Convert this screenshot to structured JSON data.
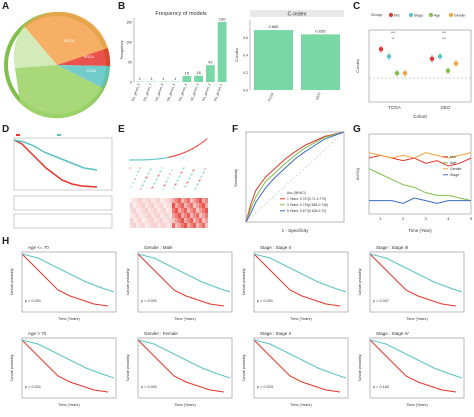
{
  "panels": {
    "A": {
      "label": "A",
      "sectors": [
        "SKCM",
        "BRCA",
        "COAD"
      ]
    },
    "B": {
      "label": "B"
    },
    "C": {
      "label": "C"
    },
    "D": {
      "label": "D"
    },
    "E": {
      "label": "E"
    },
    "F": {
      "label": "F"
    },
    "G": {
      "label": "G"
    },
    "H": {
      "label": "H"
    }
  },
  "chart_data": [
    {
      "id": "B-left",
      "type": "bar",
      "title": "Frequency of models",
      "ylabel": "Frequency",
      "categories": [
        "SG_genes_8",
        "SG_genes_7",
        "SG_genes_6",
        "SG_genes_5",
        "SG_genes_4",
        "SG_genes_3",
        "SG_genes_2",
        "SG_genes_1"
      ],
      "values": [
        1,
        1,
        1,
        1,
        15,
        16,
        42,
        150
      ],
      "value_labels": [
        "1",
        "1",
        "1",
        "1",
        "15",
        "16",
        "42",
        "150"
      ],
      "color": "#79d7a6"
    },
    {
      "id": "B-right",
      "type": "bar",
      "title": "C-index",
      "ylabel": "C-index",
      "categories": [
        "TCGA",
        "GEO"
      ],
      "values": [
        0.685,
        0.636
      ],
      "value_labels": [
        "0.685",
        "0.636"
      ],
      "color": "#79d7a6"
    },
    {
      "id": "C",
      "type": "scatter",
      "ylabel": "C-index",
      "xlabel": "Cohort",
      "categories": [
        "TCGA",
        "GEO"
      ],
      "legend_title": "Group",
      "series": [
        {
          "name": "Mrs",
          "color": "#e5352b"
        },
        {
          "name": "Stage",
          "color": "#59c3c3"
        },
        {
          "name": "Age",
          "color": "#7fbf4a"
        },
        {
          "name": "Gender",
          "color": "#f2a33a"
        }
      ],
      "values": [
        [
          0.62,
          0.59,
          0.52,
          0.52
        ],
        [
          0.58,
          0.59,
          0.53,
          0.56
        ]
      ],
      "sig": [
        "***",
        "**",
        "***",
        "***"
      ]
    },
    {
      "id": "F",
      "type": "line",
      "xlabel": "1 - Specificity",
      "ylabel": "Sensitivity",
      "legend": [
        "Auc (95%CI)",
        "1 Years: 0.747(0.71-0.779)",
        "3 Years: 0.719(0.684-0.748)",
        "5 Years: 0.677(0.634-0.72)"
      ],
      "series": [
        {
          "name": "1 Years",
          "color": "#e5352b",
          "x": [
            0,
            0.05,
            0.1,
            0.2,
            0.3,
            0.4,
            0.5,
            0.6,
            0.7,
            0.8,
            1
          ],
          "y": [
            0,
            0.2,
            0.35,
            0.5,
            0.6,
            0.7,
            0.78,
            0.85,
            0.9,
            0.95,
            1
          ]
        },
        {
          "name": "3 Years",
          "color": "#7fbf4a",
          "x": [
            0,
            0.05,
            0.1,
            0.2,
            0.3,
            0.4,
            0.5,
            0.6,
            0.7,
            0.8,
            1
          ],
          "y": [
            0,
            0.15,
            0.28,
            0.45,
            0.55,
            0.65,
            0.74,
            0.82,
            0.88,
            0.94,
            1
          ]
        },
        {
          "name": "5 Years",
          "color": "#3b6cc9",
          "x": [
            0,
            0.05,
            0.1,
            0.2,
            0.3,
            0.4,
            0.5,
            0.6,
            0.7,
            0.8,
            1
          ],
          "y": [
            0,
            0.1,
            0.22,
            0.38,
            0.5,
            0.6,
            0.7,
            0.78,
            0.85,
            0.92,
            1
          ]
        }
      ]
    },
    {
      "id": "G",
      "type": "line",
      "xlabel": "Time (Year)",
      "ylabel": "AUC(t)",
      "legend": [
        "Mrs",
        "Age",
        "Gender",
        "Stage"
      ],
      "x": [
        0.5,
        1,
        1.5,
        2,
        2.5,
        3,
        3.5,
        4,
        4.5,
        5
      ],
      "xticks": [
        "1",
        "2",
        "3",
        "4",
        "5"
      ],
      "series": [
        {
          "name": "Mrs",
          "color": "#e5352b",
          "y": [
            0.66,
            0.67,
            0.66,
            0.65,
            0.66,
            0.64,
            0.65,
            0.63,
            0.64,
            0.66
          ]
        },
        {
          "name": "Age",
          "color": "#7fbf4a",
          "y": [
            0.62,
            0.6,
            0.58,
            0.56,
            0.55,
            0.53,
            0.52,
            0.52,
            0.51,
            0.5
          ]
        },
        {
          "name": "Gender",
          "color": "#f2a33a",
          "y": [
            0.68,
            0.67,
            0.66,
            0.67,
            0.66,
            0.68,
            0.67,
            0.66,
            0.67,
            0.68
          ]
        },
        {
          "name": "Stage",
          "color": "#3b6cc9",
          "y": [
            0.5,
            0.5,
            0.5,
            0.49,
            0.51,
            0.5,
            0.49,
            0.5,
            0.5,
            0.5
          ]
        }
      ]
    },
    {
      "id": "H",
      "type": "line",
      "panels": [
        {
          "title": "Age <= 70",
          "p": "p < 0.001"
        },
        {
          "title": "Gender : Male",
          "p": "p < 0.001"
        },
        {
          "title": "Stage : Stage II",
          "p": "p < 0.001"
        },
        {
          "title": "Stage : Stage III",
          "p": "p = 0.007"
        },
        {
          "title": "Age > 70",
          "p": "p = 0.001"
        },
        {
          "title": "Gender : Female",
          "p": "p < 0.001"
        },
        {
          "title": "Stage : Stage II",
          "p": "p = 0.003"
        },
        {
          "title": "Stage : Stage IV",
          "p": "p = 0.163"
        }
      ],
      "xlabel": "Time (Years)",
      "ylabel": "Survival probability"
    }
  ],
  "colors": {
    "high": "#e5352b",
    "low": "#59c3c3",
    "bar": "#79d7a6"
  }
}
